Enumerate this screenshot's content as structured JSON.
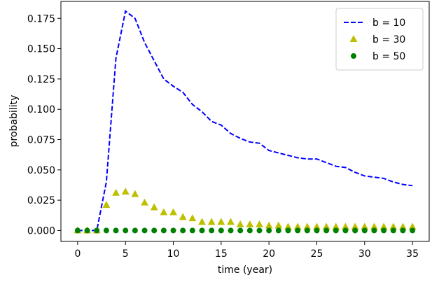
{
  "chart_data": {
    "type": "line",
    "title": "",
    "xlabel": "time (year)",
    "ylabel": "probability",
    "xlim": [
      -1.75,
      36.75
    ],
    "ylim": [
      -0.009,
      0.189
    ],
    "xticks": [
      0,
      5,
      10,
      15,
      20,
      25,
      30,
      35
    ],
    "xtick_labels": [
      "0",
      "5",
      "10",
      "15",
      "20",
      "25",
      "30",
      "35"
    ],
    "yticks": [
      0.0,
      0.025,
      0.05,
      0.075,
      0.1,
      0.125,
      0.15,
      0.175
    ],
    "ytick_labels": [
      "0.000",
      "0.025",
      "0.050",
      "0.075",
      "0.100",
      "0.125",
      "0.150",
      "0.175"
    ],
    "grid": false,
    "legend_position": "top-right",
    "x": [
      0,
      1,
      2,
      3,
      4,
      5,
      6,
      7,
      8,
      9,
      10,
      11,
      12,
      13,
      14,
      15,
      16,
      17,
      18,
      19,
      20,
      21,
      22,
      23,
      24,
      25,
      26,
      27,
      28,
      29,
      30,
      31,
      32,
      33,
      34,
      35
    ],
    "series": [
      {
        "name": "b = 10",
        "style": "dashed-line",
        "color": "#0000ff",
        "values": [
          0,
          0,
          0,
          0.04,
          0.142,
          0.181,
          0.175,
          0.155,
          0.14,
          0.125,
          0.119,
          0.114,
          0.104,
          0.098,
          0.09,
          0.087,
          0.08,
          0.076,
          0.073,
          0.072,
          0.066,
          0.064,
          0.062,
          0.06,
          0.059,
          0.059,
          0.056,
          0.053,
          0.052,
          0.048,
          0.045,
          0.044,
          0.043,
          0.04,
          0.038,
          0.037
        ]
      },
      {
        "name": "b = 30",
        "style": "triangle-markers",
        "color": "#bfbf00",
        "values": [
          0,
          0,
          0,
          0.021,
          0.031,
          0.032,
          0.03,
          0.023,
          0.019,
          0.015,
          0.015,
          0.011,
          0.01,
          0.007,
          0.007,
          0.007,
          0.007,
          0.005,
          0.005,
          0.005,
          0.004,
          0.004,
          0.003,
          0.003,
          0.003,
          0.003,
          0.003,
          0.003,
          0.003,
          0.003,
          0.003,
          0.003,
          0.003,
          0.003,
          0.003,
          0.003
        ]
      },
      {
        "name": "b = 50",
        "style": "circle-markers",
        "color": "#008000",
        "values": [
          0,
          0,
          0,
          0,
          0,
          0,
          0,
          0,
          0,
          0,
          0,
          0,
          0,
          0,
          0,
          0,
          0,
          0,
          0,
          0,
          0,
          0,
          0,
          0,
          0,
          0,
          0,
          0,
          0,
          0,
          0,
          0,
          0,
          0,
          0,
          0
        ]
      }
    ]
  }
}
